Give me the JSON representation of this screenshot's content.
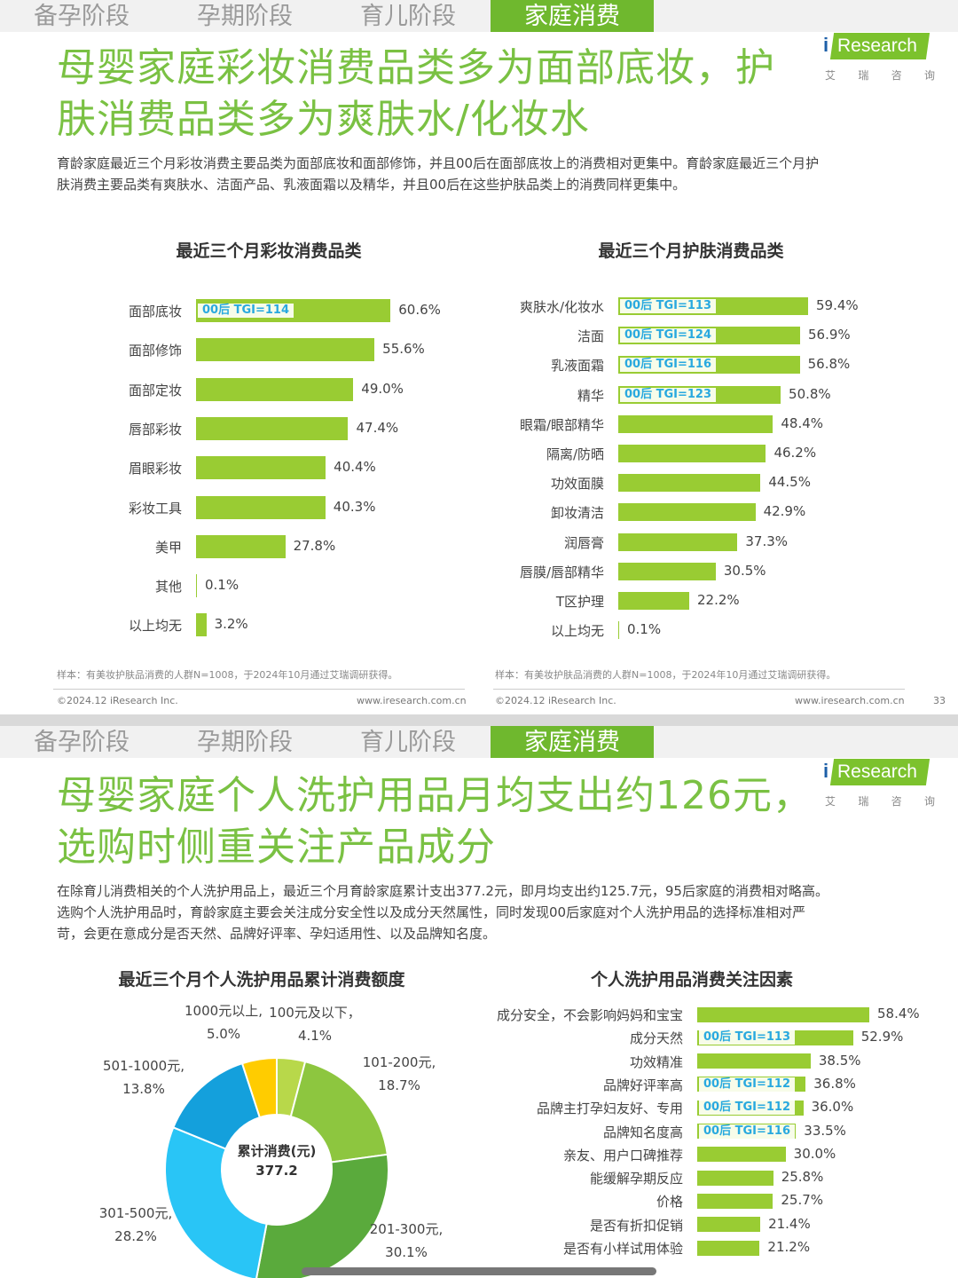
{
  "tabs": [
    "备孕阶段",
    "孕期阶段",
    "育儿阶段",
    "家庭消费"
  ],
  "active_tab": 3,
  "logo": {
    "i": "i",
    "name": "Research",
    "cn": [
      "艾",
      "瑞",
      "咨",
      "询"
    ],
    "colors": {
      "green": "#7cc22d",
      "blue": "#1d5fa8"
    }
  },
  "slide1": {
    "title_lines": [
      "母婴家庭彩妆消费品类多为面部底妆，护",
      "肤消费品类多为爽肤水/化妆水"
    ],
    "desc_lines": [
      "育龄家庭最近三个月彩妆消费主要品类为面部底妆和面部修饰，并且00后在面部底妆上的消费相对更集中。育龄家庭最近三个月护",
      "肤消费主要品类有爽肤水、洁面产品、乳液面霜以及精华，并且00后在这些护肤品类上的消费同样更集中。"
    ],
    "note_left": "样本：有美妆护肤品消费的人群N=1008，于2024年10月通过艾瑞调研获得。",
    "note_right": "样本：有美妆护肤品消费的人群N=1008，于2024年10月通过艾瑞调研获得。",
    "footer_left": "©2024.12 iResearch Inc.",
    "footer_url": "www.iresearch.com.cn",
    "footer_left2": "©2024.12 iResearch Inc.",
    "footer_url2": "www.iresearch.com.cn",
    "page": "33"
  },
  "slide2": {
    "title_lines": [
      "母婴家庭个人洗护用品月均支出约126元，",
      "选购时侧重关注产品成分"
    ],
    "desc_lines": [
      "在除育儿消费相关的个人洗护用品上，最近三个月育龄家庭累计支出377.2元，即月均支出约125.7元，95后家庭的消费相对略高。",
      "选购个人洗护用品时，育龄家庭主要会关注成分安全性以及成分天然属性，同时发现00后家庭对个人洗护用品的选择标准相对严",
      "苛，会更在意成分是否天然、品牌好评率、孕妇适用性、以及品牌知名度。"
    ]
  },
  "chart_data": [
    {
      "type": "bar",
      "orientation": "horizontal",
      "title": "最近三个月彩妆消费品类",
      "categories": [
        "面部底妆",
        "面部修饰",
        "面部定妆",
        "唇部彩妆",
        "眉眼彩妆",
        "彩妆工具",
        "美甲",
        "其他",
        "以上均无"
      ],
      "values": [
        60.6,
        55.6,
        49.0,
        47.4,
        40.4,
        40.3,
        27.8,
        0.1,
        3.2
      ],
      "value_labels": [
        "60.6%",
        "55.6%",
        "49.0%",
        "47.4%",
        "40.4%",
        "40.3%",
        "27.8%",
        "0.1%",
        "3.2%"
      ],
      "annotations": [
        "00后 TGI=114",
        "",
        "",
        "",
        "",
        "",
        "",
        "",
        ""
      ],
      "xlim": [
        0,
        100
      ],
      "bar_color": "#99cc33",
      "annotation_color": "#29a9df"
    },
    {
      "type": "bar",
      "orientation": "horizontal",
      "title": "最近三个月护肤消费品类",
      "categories": [
        "爽肤水/化妆水",
        "洁面",
        "乳液面霜",
        "精华",
        "眼霜/眼部精华",
        "隔离/防晒",
        "功效面膜",
        "卸妆清洁",
        "润唇膏",
        "唇膜/唇部精华",
        "T区护理",
        "以上均无"
      ],
      "values": [
        59.4,
        56.9,
        56.8,
        50.8,
        48.4,
        46.2,
        44.5,
        42.9,
        37.3,
        30.5,
        22.2,
        0.1
      ],
      "value_labels": [
        "59.4%",
        "56.9%",
        "56.8%",
        "50.8%",
        "48.4%",
        "46.2%",
        "44.5%",
        "42.9%",
        "37.3%",
        "30.5%",
        "22.2%",
        "0.1%"
      ],
      "annotations": [
        "00后 TGI=113",
        "00后 TGI=124",
        "00后 TGI=116",
        "00后 TGI=123",
        "",
        "",
        "",
        "",
        "",
        "",
        "",
        ""
      ],
      "xlim": [
        0,
        100
      ],
      "bar_color": "#99cc33",
      "annotation_color": "#29a9df"
    },
    {
      "type": "pie",
      "variant": "donut",
      "title": "最近三个月个人洗护用品累计消费额度",
      "center_label": "累计消费(元)",
      "center_value": "377.2",
      "slices": [
        {
          "label": "100元及以下，",
          "value": 4.1,
          "value_label": "4.1%",
          "color": "#b8d84a"
        },
        {
          "label": "101-200元,",
          "value": 18.7,
          "value_label": "18.7%",
          "color": "#8dc63f"
        },
        {
          "label": "201-300元,",
          "value": 30.1,
          "value_label": "30.1%",
          "color": "#5aaa3c"
        },
        {
          "label": "301-500元,",
          "value": 28.2,
          "value_label": "28.2%",
          "color": "#29c5f6"
        },
        {
          "label": "501-1000元,",
          "value": 13.8,
          "value_label": "13.8%",
          "color": "#14a0dc"
        },
        {
          "label": "1000元以上,",
          "value": 5.0,
          "value_label": "5.0%",
          "color": "#ffcc00"
        }
      ]
    },
    {
      "type": "bar",
      "orientation": "horizontal",
      "title": "个人洗护用品消费关注因素",
      "categories": [
        "成分安全，不会影响妈妈和宝宝",
        "成分天然",
        "功效精准",
        "品牌好评率高",
        "品牌主打孕妇友好、专用",
        "品牌知名度高",
        "亲友、用户口碑推荐",
        "能缓解孕期反应",
        "价格",
        "是否有折扣促销",
        "是否有小样试用体验"
      ],
      "values": [
        58.4,
        52.9,
        38.5,
        36.8,
        36.0,
        33.5,
        30.0,
        25.8,
        25.7,
        21.4,
        21.2
      ],
      "value_labels": [
        "58.4%",
        "52.9%",
        "38.5%",
        "36.8%",
        "36.0%",
        "33.5%",
        "30.0%",
        "25.8%",
        "25.7%",
        "21.4%",
        "21.2%"
      ],
      "annotations": [
        "",
        "00后 TGI=113",
        "",
        "00后 TGI=112",
        "00后 TGI=112",
        "00后 TGI=116",
        "",
        "",
        "",
        "",
        ""
      ],
      "xlim": [
        0,
        100
      ],
      "bar_color": "#99cc33",
      "annotation_color": "#29a9df"
    }
  ]
}
